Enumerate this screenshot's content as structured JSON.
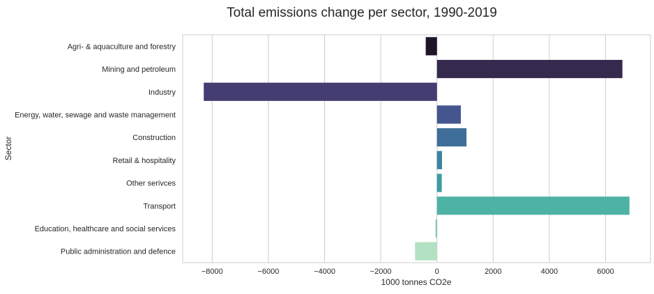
{
  "chart_data": {
    "type": "bar",
    "orientation": "horizontal",
    "title": "Total emissions change per sector, 1990-2019",
    "xlabel": "1000 tonnes CO2e",
    "ylabel": "Sector",
    "xlim": [
      -9050,
      7600
    ],
    "xticks": [
      -8000,
      -6000,
      -4000,
      -2000,
      0,
      2000,
      4000,
      6000
    ],
    "xtick_labels": [
      "−8000",
      "−6000",
      "−4000",
      "−2000",
      "0",
      "2000",
      "4000",
      "6000"
    ],
    "grid": true,
    "categories": [
      "Agri- & aquaculture and forestry",
      "Mining and petroleum",
      "Industry",
      "Energy, water, sewage and waste management",
      "Construction",
      "Retail & hospitality",
      "Other serivces",
      "Transport",
      "Education, healthcare and social services",
      "Public administration and defence"
    ],
    "values": [
      -400,
      6600,
      -8300,
      850,
      1050,
      180,
      170,
      6850,
      -50,
      -780
    ],
    "colors": [
      "#1f1527",
      "#36294e",
      "#433d72",
      "#45568f",
      "#3e6d99",
      "#3a859e",
      "#3a9da3",
      "#4eb2a5",
      "#7cc8ae",
      "#b3e1c3"
    ]
  }
}
